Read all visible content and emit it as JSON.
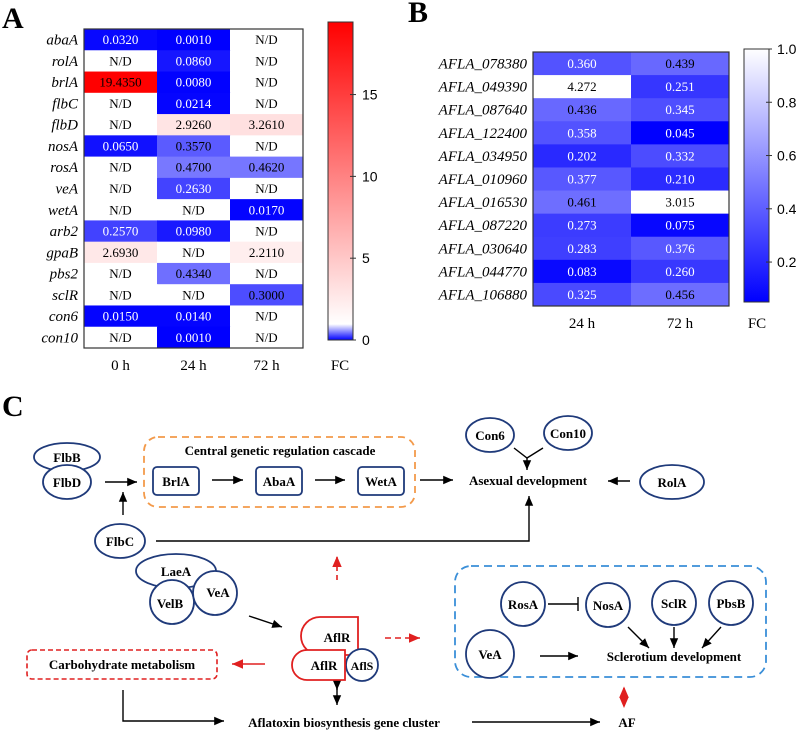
{
  "panels": {
    "a": "A",
    "b": "B",
    "c": "C"
  },
  "chart_data": [
    {
      "type": "heatmap",
      "panel": "A",
      "rows": [
        "abaA",
        "rolA",
        "brlA",
        "flbC",
        "flbD",
        "nosA",
        "rosA",
        "veA",
        "wetA",
        "arb2",
        "gpaB",
        "pbs2",
        "sclR",
        "con6",
        "con10"
      ],
      "columns": [
        "0 h",
        "24 h",
        "72 h"
      ],
      "values": [
        [
          0.032,
          0.001,
          null
        ],
        [
          null,
          0.086,
          null
        ],
        [
          19.435,
          0.008,
          null
        ],
        [
          null,
          0.0214,
          null
        ],
        [
          null,
          2.926,
          3.261
        ],
        [
          0.065,
          0.357,
          null
        ],
        [
          null,
          0.47,
          0.462
        ],
        [
          null,
          0.263,
          null
        ],
        [
          null,
          null,
          0.017
        ],
        [
          0.257,
          0.098,
          null
        ],
        [
          2.693,
          null,
          2.211
        ],
        [
          null,
          0.434,
          null
        ],
        [
          null,
          null,
          0.3
        ],
        [
          0.015,
          0.014,
          null
        ],
        [
          null,
          0.001,
          null
        ]
      ],
      "labels": [
        [
          "0.0320",
          "0.0010",
          "N/D"
        ],
        [
          "N/D",
          "0.0860",
          "N/D"
        ],
        [
          "19.4350",
          "0.0080",
          "N/D"
        ],
        [
          "N/D",
          "0.0214",
          "N/D"
        ],
        [
          "N/D",
          "2.9260",
          "3.2610"
        ],
        [
          "0.0650",
          "0.3570",
          "N/D"
        ],
        [
          "N/D",
          "0.4700",
          "0.4620"
        ],
        [
          "N/D",
          "0.2630",
          "N/D"
        ],
        [
          "N/D",
          "N/D",
          "0.0170"
        ],
        [
          "0.2570",
          "0.0980",
          "N/D"
        ],
        [
          "2.6930",
          "N/D",
          "2.2110"
        ],
        [
          "N/D",
          "0.4340",
          "N/D"
        ],
        [
          "N/D",
          "N/D",
          "0.3000"
        ],
        [
          "0.0150",
          "0.0140",
          "N/D"
        ],
        [
          "N/D",
          "0.0010",
          "N/D"
        ]
      ],
      "colorbar": {
        "label": "FC",
        "range": [
          0,
          19.435
        ],
        "ticks": [
          0,
          5,
          10,
          15
        ],
        "colors": {
          "low": "#0000ff",
          "mid": "#ffffff",
          "high": "#ff0000"
        }
      }
    },
    {
      "type": "heatmap",
      "panel": "B",
      "rows": [
        "AFLA_078380",
        "AFLA_049390",
        "AFLA_087640",
        "AFLA_122400",
        "AFLA_034950",
        "AFLA_010960",
        "AFLA_016530",
        "AFLA_087220",
        "AFLA_030640",
        "AFLA_044770",
        "AFLA_106880"
      ],
      "columns": [
        "24 h",
        "72 h"
      ],
      "values": [
        [
          0.36,
          0.439
        ],
        [
          4.272,
          0.251
        ],
        [
          0.436,
          0.345
        ],
        [
          0.358,
          0.045
        ],
        [
          0.202,
          0.332
        ],
        [
          0.377,
          0.21
        ],
        [
          0.461,
          3.015
        ],
        [
          0.273,
          0.075
        ],
        [
          0.283,
          0.376
        ],
        [
          0.083,
          0.26
        ],
        [
          0.325,
          0.456
        ]
      ],
      "labels": [
        [
          "0.360",
          "0.439"
        ],
        [
          "4.272",
          "0.251"
        ],
        [
          "0.436",
          "0.345"
        ],
        [
          "0.358",
          "0.045"
        ],
        [
          "0.202",
          "0.332"
        ],
        [
          "0.377",
          "0.210"
        ],
        [
          "0.461",
          "3.015"
        ],
        [
          "0.273",
          "0.075"
        ],
        [
          "0.283",
          "0.376"
        ],
        [
          "0.083",
          "0.260"
        ],
        [
          "0.325",
          "0.456"
        ]
      ],
      "colorbar": {
        "label": "FC",
        "range": [
          0.05,
          1.0
        ],
        "ticks": [
          "0.2",
          "0.4",
          "0.6",
          "0.8",
          "1.0"
        ],
        "colors": {
          "low": "#0000ff",
          "high": "#ffffff"
        }
      }
    }
  ],
  "diagram": {
    "cascade_title": "Central genetic regulation cascade",
    "nodes": {
      "flbb": "FlbB",
      "flbd": "FlbD",
      "flbc": "FlbC",
      "brla": "BrlA",
      "abaa": "AbaA",
      "weta": "WetA",
      "con6": "Con6",
      "con10": "Con10",
      "rola": "RolA",
      "asexual": "Asexual development",
      "laea": "LaeA",
      "velb": "VelB",
      "vea": "VeA",
      "aflr": "AflR",
      "aflr2": "AflR",
      "afls": "AflS",
      "carb": "Carbohydrate metabolism",
      "cluster": "Aflatoxin biosynthesis gene cluster",
      "af": "AF",
      "rosa": "RosA",
      "nosa": "NosA",
      "sclr": "SclR",
      "pbsb": "PbsB",
      "vea2": "VeA",
      "sclerotium": "Sclerotium development"
    },
    "colors": {
      "node_outline": "#1f3a7a",
      "cascade_box": "#f39a4a",
      "sclerotium_box": "#3a8fd8",
      "regulation": "#e02020"
    }
  }
}
